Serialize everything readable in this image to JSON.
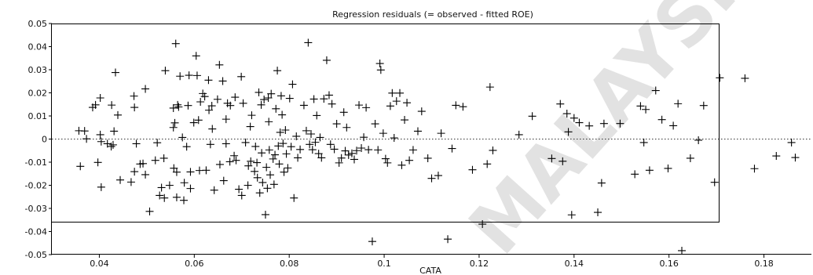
{
  "chart_data": {
    "type": "scatter",
    "title": "Regression residuals (= observed - fitted ROE)",
    "xlabel": "CATA",
    "ylabel": "",
    "xlim": [
      0.03,
      0.19
    ],
    "ylim": [
      -0.05,
      0.05
    ],
    "x_ticks": [
      "0.04",
      "0.06",
      "0.08",
      "0.1",
      "0.12",
      "0.14",
      "0.16",
      "0.18"
    ],
    "y_ticks": [
      "0.05",
      "0.04",
      "0.03",
      "0.02",
      "0.01",
      "0",
      "-0.01",
      "-0.02",
      "-0.03",
      "-0.04",
      "-0.05"
    ],
    "zero_line": "dotted",
    "marker": "plus",
    "points": [
      [
        0.0357,
        0.0036
      ],
      [
        0.0369,
        0.0035
      ],
      [
        0.0373,
        0.0001
      ],
      [
        0.036,
        -0.0118
      ],
      [
        0.0386,
        0.0137
      ],
      [
        0.0392,
        0.0148
      ],
      [
        0.0402,
        0.0178
      ],
      [
        0.0404,
        -0.0011
      ],
      [
        0.0402,
        0.0019
      ],
      [
        0.0404,
        -0.0208
      ],
      [
        0.0397,
        -0.0101
      ],
      [
        0.0417,
        -0.002
      ],
      [
        0.0425,
        -0.0032
      ],
      [
        0.0426,
        0.0147
      ],
      [
        0.0429,
        -0.0025
      ],
      [
        0.0434,
        0.0288
      ],
      [
        0.0439,
        0.0104
      ],
      [
        0.0431,
        0.0034
      ],
      [
        0.0444,
        -0.0177
      ],
      [
        0.0467,
        -0.0186
      ],
      [
        0.0474,
        0.0137
      ],
      [
        0.0473,
        0.0186
      ],
      [
        0.0478,
        -0.002
      ],
      [
        0.0474,
        -0.0141
      ],
      [
        0.0486,
        -0.0108
      ],
      [
        0.0492,
        -0.0106
      ],
      [
        0.0497,
        -0.0154
      ],
      [
        0.0497,
        0.0217
      ],
      [
        0.0506,
        -0.0313
      ],
      [
        0.0522,
        -0.0016
      ],
      [
        0.0518,
        -0.0092
      ],
      [
        0.0527,
        -0.0244
      ],
      [
        0.0531,
        -0.021
      ],
      [
        0.0536,
        -0.0083
      ],
      [
        0.0537,
        -0.0255
      ],
      [
        0.0539,
        0.0296
      ],
      [
        0.0548,
        -0.02
      ],
      [
        0.0556,
        0.0134
      ],
      [
        0.0556,
        0.005
      ],
      [
        0.0557,
        -0.0126
      ],
      [
        0.0559,
        0.007
      ],
      [
        0.0561,
        0.0413
      ],
      [
        0.0563,
        -0.0143
      ],
      [
        0.0565,
        0.0148
      ],
      [
        0.0567,
        0.0139
      ],
      [
        0.0563,
        -0.0252
      ],
      [
        0.057,
        0.0272
      ],
      [
        0.0575,
        0.0007
      ],
      [
        0.0578,
        -0.0265
      ],
      [
        0.0579,
        -0.0189
      ],
      [
        0.0584,
        -0.0033
      ],
      [
        0.0587,
        0.0145
      ],
      [
        0.0589,
        0.0276
      ],
      [
        0.0592,
        -0.0214
      ],
      [
        0.0592,
        -0.0142
      ],
      [
        0.0599,
        0.0071
      ],
      [
        0.0604,
        0.036
      ],
      [
        0.0606,
        0.0275
      ],
      [
        0.0609,
        0.0082
      ],
      [
        0.0611,
        -0.0136
      ],
      [
        0.0613,
        0.0161
      ],
      [
        0.0618,
        0.0197
      ],
      [
        0.0622,
        0.0184
      ],
      [
        0.0625,
        -0.0135
      ],
      [
        0.063,
        0.0255
      ],
      [
        0.0631,
        0.0125
      ],
      [
        0.0634,
        -0.0023
      ],
      [
        0.0637,
        0.0144
      ],
      [
        0.0638,
        0.0044
      ],
      [
        0.0642,
        -0.0221
      ],
      [
        0.0649,
        0.0172
      ],
      [
        0.0653,
        0.0321
      ],
      [
        0.0654,
        -0.011
      ],
      [
        0.066,
        0.0251
      ],
      [
        0.0662,
        -0.018
      ],
      [
        0.0667,
        -0.002
      ],
      [
        0.0667,
        0.0086
      ],
      [
        0.067,
        0.0155
      ],
      [
        0.0675,
        -0.0098
      ],
      [
        0.0676,
        0.0145
      ],
      [
        0.0684,
        -0.0072
      ],
      [
        0.0686,
        0.0181
      ],
      [
        0.0688,
        -0.0092
      ],
      [
        0.0694,
        -0.0217
      ],
      [
        0.0699,
        0.027
      ],
      [
        0.07,
        -0.0244
      ],
      [
        0.0703,
        0.0155
      ],
      [
        0.0708,
        -0.0015
      ],
      [
        0.0713,
        -0.02
      ],
      [
        0.0714,
        -0.0116
      ],
      [
        0.0718,
        0.0054
      ],
      [
        0.0719,
        -0.0096
      ],
      [
        0.0721,
        0.0103
      ],
      [
        0.0727,
        -0.014
      ],
      [
        0.0729,
        -0.0032
      ],
      [
        0.0732,
        -0.0102
      ],
      [
        0.0733,
        -0.0167
      ],
      [
        0.0736,
        0.0202
      ],
      [
        0.0738,
        -0.0233
      ],
      [
        0.0741,
        0.0148
      ],
      [
        0.0742,
        -0.006
      ],
      [
        0.0744,
        -0.0188
      ],
      [
        0.0747,
        0.0171
      ],
      [
        0.075,
        -0.0327
      ],
      [
        0.0752,
        -0.0122
      ],
      [
        0.0754,
        -0.0213
      ],
      [
        0.0756,
        0.0178
      ],
      [
        0.0757,
        0.0075
      ],
      [
        0.0758,
        -0.0047
      ],
      [
        0.076,
        -0.0155
      ],
      [
        0.0762,
        0.0196
      ],
      [
        0.0766,
        -0.0086
      ],
      [
        0.0768,
        -0.0196
      ],
      [
        0.077,
        -0.0068
      ],
      [
        0.0772,
        0.0131
      ],
      [
        0.0775,
        0.0296
      ],
      [
        0.0777,
        -0.003
      ],
      [
        0.0779,
        -0.0108
      ],
      [
        0.0781,
        0.0029
      ],
      [
        0.0783,
        0.0187
      ],
      [
        0.0785,
        0.0105
      ],
      [
        0.0787,
        -0.0019
      ],
      [
        0.0789,
        -0.0143
      ],
      [
        0.0792,
        0.0039
      ],
      [
        0.0794,
        -0.0064
      ],
      [
        0.0797,
        -0.0125
      ],
      [
        0.0801,
        0.0176
      ],
      [
        0.0804,
        -0.0033
      ],
      [
        0.0807,
        0.0237
      ],
      [
        0.081,
        -0.0255
      ],
      [
        0.0815,
        0.0012
      ],
      [
        0.0818,
        -0.0081
      ],
      [
        0.0823,
        -0.0045
      ],
      [
        0.0831,
        0.0146
      ],
      [
        0.0836,
        0.0036
      ],
      [
        0.084,
        0.0417
      ],
      [
        0.0843,
        -0.0023
      ],
      [
        0.0846,
        0.0022
      ],
      [
        0.0849,
        -0.0046
      ],
      [
        0.0852,
        0.0173
      ],
      [
        0.0855,
        -0.0014
      ],
      [
        0.0858,
        0.0102
      ],
      [
        0.0862,
        -0.0063
      ],
      [
        0.0865,
        0.0007
      ],
      [
        0.0868,
        -0.0081
      ],
      [
        0.0873,
        0.0174
      ],
      [
        0.0879,
        0.0341
      ],
      [
        0.0884,
        0.019
      ],
      [
        0.0887,
        -0.0023
      ],
      [
        0.089,
        0.0152
      ],
      [
        0.0895,
        -0.0044
      ],
      [
        0.09,
        0.0066
      ],
      [
        0.0905,
        -0.0103
      ],
      [
        0.091,
        -0.0082
      ],
      [
        0.0915,
        0.0116
      ],
      [
        0.0918,
        -0.0051
      ],
      [
        0.0921,
        0.005
      ],
      [
        0.0925,
        -0.0069
      ],
      [
        0.0932,
        -0.0062
      ],
      [
        0.0937,
        -0.0088
      ],
      [
        0.0942,
        -0.005
      ],
      [
        0.0947,
        0.0147
      ],
      [
        0.0952,
        -0.0039
      ],
      [
        0.0957,
        0.0008
      ],
      [
        0.0962,
        0.0136
      ],
      [
        0.0967,
        -0.0046
      ],
      [
        0.0975,
        -0.0443
      ],
      [
        0.0981,
        0.0066
      ],
      [
        0.0987,
        -0.0047
      ],
      [
        0.0991,
        0.0327
      ],
      [
        0.0993,
        0.0299
      ],
      [
        0.0998,
        0.0025
      ],
      [
        0.1003,
        -0.0085
      ],
      [
        0.1007,
        -0.0103
      ],
      [
        0.1013,
        0.0143
      ],
      [
        0.1017,
        0.0199
      ],
      [
        0.1021,
        0.0005
      ],
      [
        0.1026,
        0.0164
      ],
      [
        0.1033,
        0.0199
      ],
      [
        0.1037,
        -0.0113
      ],
      [
        0.1043,
        0.0083
      ],
      [
        0.1048,
        0.0157
      ],
      [
        0.1053,
        -0.0092
      ],
      [
        0.1061,
        -0.0047
      ],
      [
        0.1071,
        0.0034
      ],
      [
        0.1079,
        0.012
      ],
      [
        0.1092,
        -0.0083
      ],
      [
        0.11,
        -0.017
      ],
      [
        0.1114,
        -0.0158
      ],
      [
        0.112,
        0.0025
      ],
      [
        0.1134,
        -0.0433
      ],
      [
        0.1143,
        -0.0041
      ],
      [
        0.1151,
        0.0146
      ],
      [
        0.1166,
        0.014
      ],
      [
        0.1186,
        -0.0133
      ],
      [
        0.1207,
        -0.0368
      ],
      [
        0.1217,
        -0.0108
      ],
      [
        0.1223,
        0.0225
      ],
      [
        0.1229,
        -0.0049
      ],
      [
        0.1284,
        0.0019
      ],
      [
        0.1312,
        0.0099
      ],
      [
        0.1353,
        -0.0084
      ],
      [
        0.1371,
        0.0152
      ],
      [
        0.1376,
        -0.0096
      ],
      [
        0.1385,
        0.011
      ],
      [
        0.1388,
        0.0031
      ],
      [
        0.1395,
        -0.0328
      ],
      [
        0.14,
        0.0091
      ],
      [
        0.1411,
        0.0071
      ],
      [
        0.1432,
        0.0057
      ],
      [
        0.145,
        -0.0317
      ],
      [
        0.1458,
        -0.019
      ],
      [
        0.1463,
        0.0067
      ],
      [
        0.1497,
        0.0067
      ],
      [
        0.1528,
        -0.0152
      ],
      [
        0.154,
        0.0143
      ],
      [
        0.1547,
        -0.0015
      ],
      [
        0.1551,
        0.0128
      ],
      [
        0.1559,
        -0.0135
      ],
      [
        0.1572,
        0.021
      ],
      [
        0.1585,
        0.0084
      ],
      [
        0.1598,
        -0.0127
      ],
      [
        0.1609,
        0.0058
      ],
      [
        0.1619,
        0.0153
      ],
      [
        0.1627,
        -0.0483
      ],
      [
        0.1645,
        -0.0083
      ],
      [
        0.1662,
        -0.0005
      ],
      [
        0.1673,
        0.0145
      ],
      [
        0.1696,
        -0.0187
      ],
      [
        0.1707,
        0.0265
      ],
      [
        0.176,
        0.0263
      ],
      [
        0.178,
        -0.0128
      ],
      [
        0.1826,
        -0.0073
      ],
      [
        0.1858,
        -0.0015
      ],
      [
        0.1866,
        -0.008
      ]
    ]
  },
  "watermark": {
    "text": "MALAYSIA"
  }
}
